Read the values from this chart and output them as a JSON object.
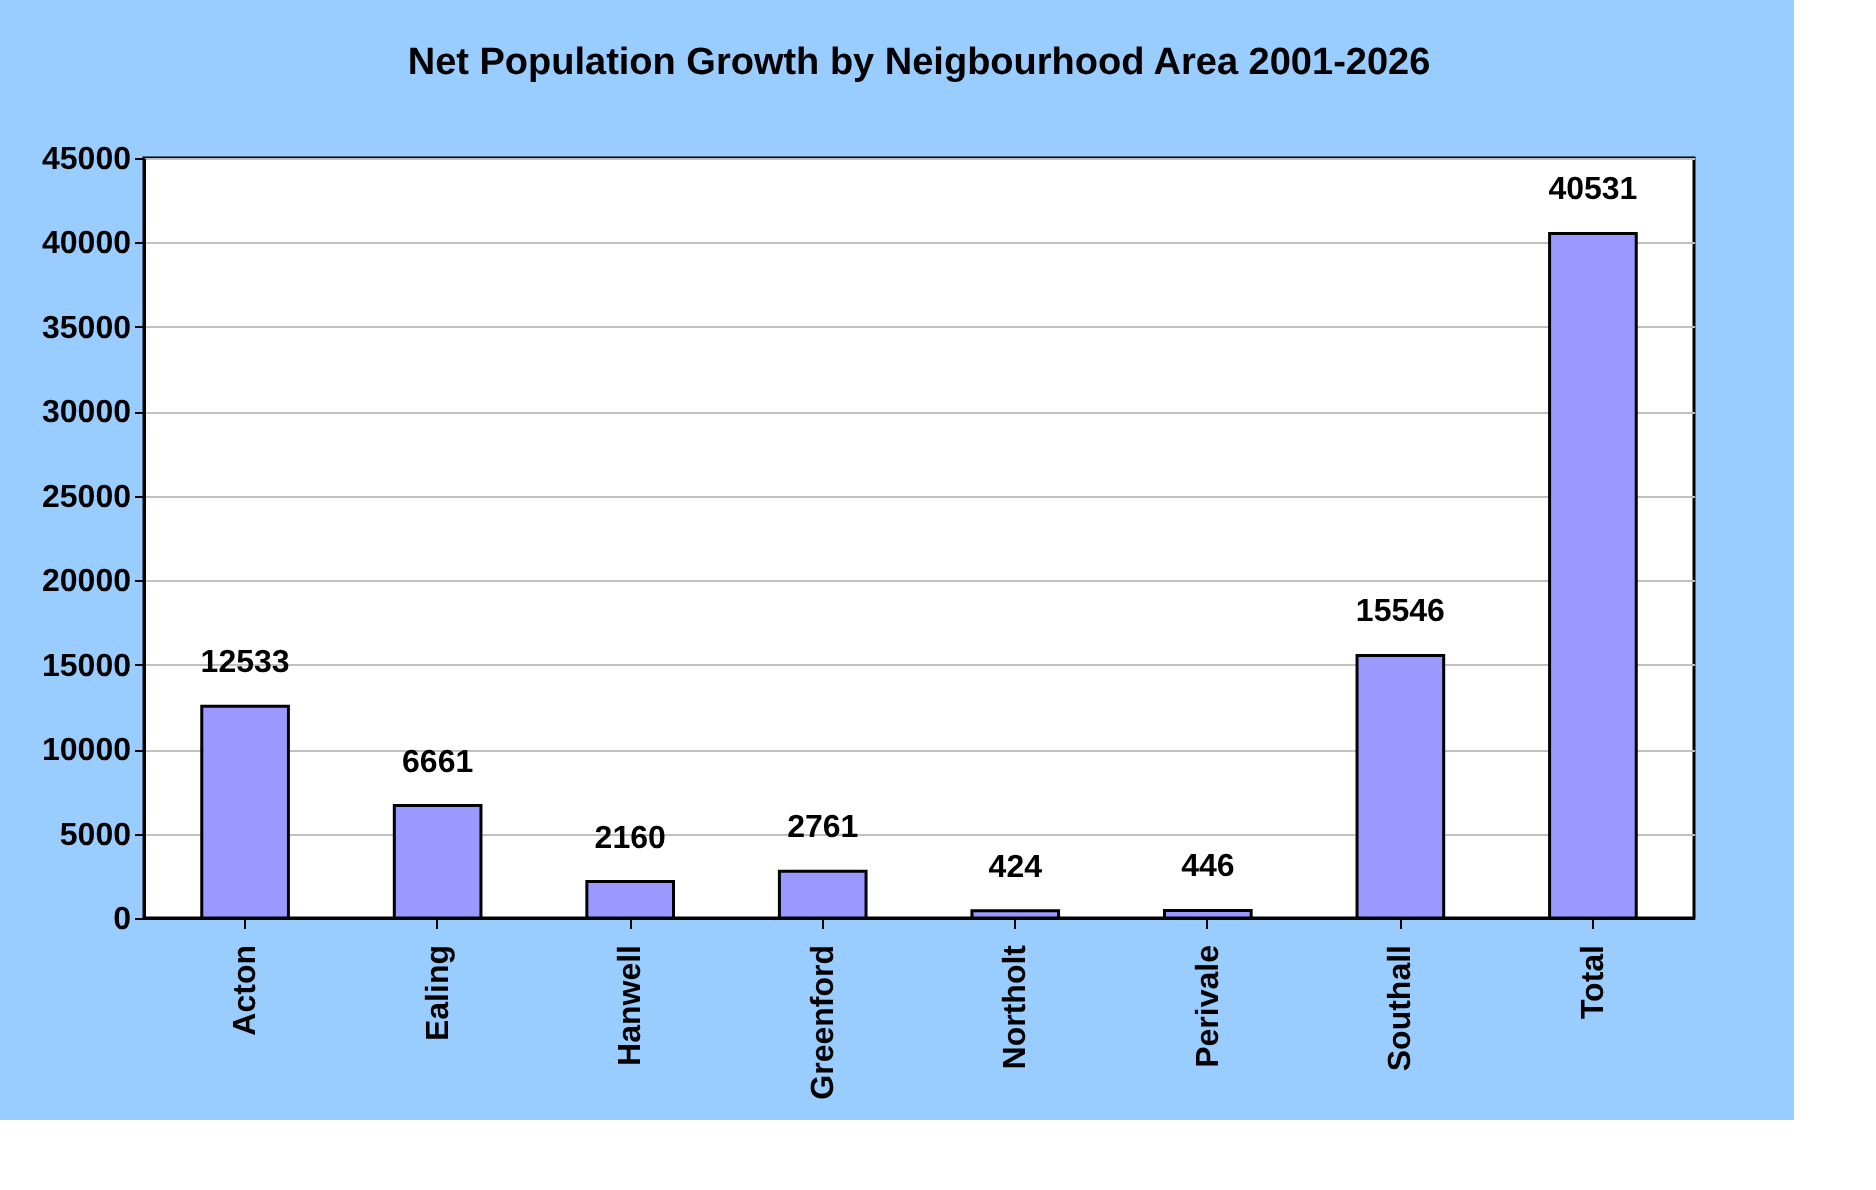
{
  "chart_data": {
    "type": "bar",
    "title": "Net Population Growth by Neigbourhood Area 2001-2026",
    "categories": [
      "Acton",
      "Ealing",
      "Hanwell",
      "Greenford",
      "Northolt",
      "Perivale",
      "Southall",
      "Total"
    ],
    "values": [
      12533,
      6661,
      2160,
      2761,
      424,
      446,
      15546,
      40531
    ],
    "color": "#9999ff",
    "ylim": [
      0,
      45000
    ],
    "yticks": [
      0,
      5000,
      10000,
      15000,
      20000,
      25000,
      30000,
      35000,
      40000,
      45000
    ],
    "grid": "y",
    "data_labels": true
  }
}
